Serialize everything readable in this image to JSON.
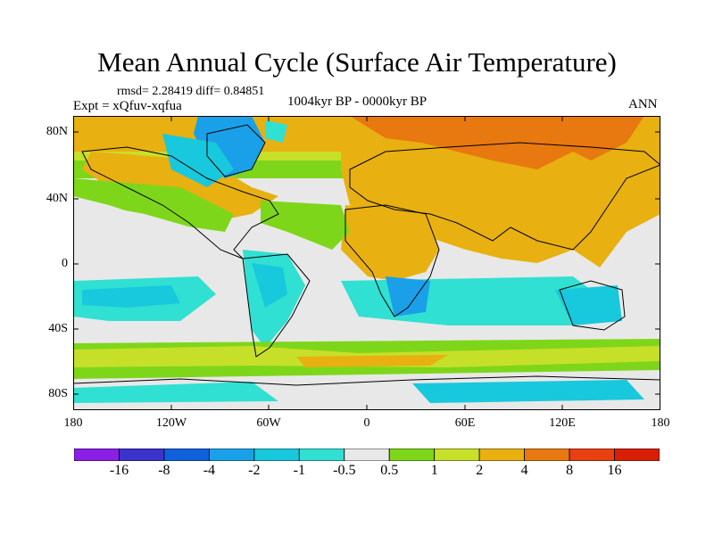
{
  "title": "Mean Annual Cycle (Surface Air Temperature)",
  "stats": "rmsd= 2.28419 diff= 0.84851",
  "experiment": "Expt = xQfuv-xqfua",
  "period": "1004kyr BP - 0000kyr BP",
  "season": "ANN",
  "lat_labels": [
    "80N",
    "40N",
    "0",
    "40S",
    "80S"
  ],
  "lon_labels": [
    "180",
    "120W",
    "60W",
    "0",
    "60E",
    "120E",
    "180"
  ],
  "colorbar": {
    "labels": [
      "-16",
      "-8",
      "-4",
      "-2",
      "-1",
      "-0.5",
      "0.5",
      "1",
      "2",
      "4",
      "8",
      "16"
    ],
    "colors": [
      "#8a1fe6",
      "#3b33cc",
      "#1060dc",
      "#1aa0e8",
      "#18c8dc",
      "#30e0d2",
      "#e8e8e8",
      "#7ed61a",
      "#c6e02a",
      "#e8b010",
      "#e87810",
      "#e84010",
      "#d81e05"
    ]
  }
}
